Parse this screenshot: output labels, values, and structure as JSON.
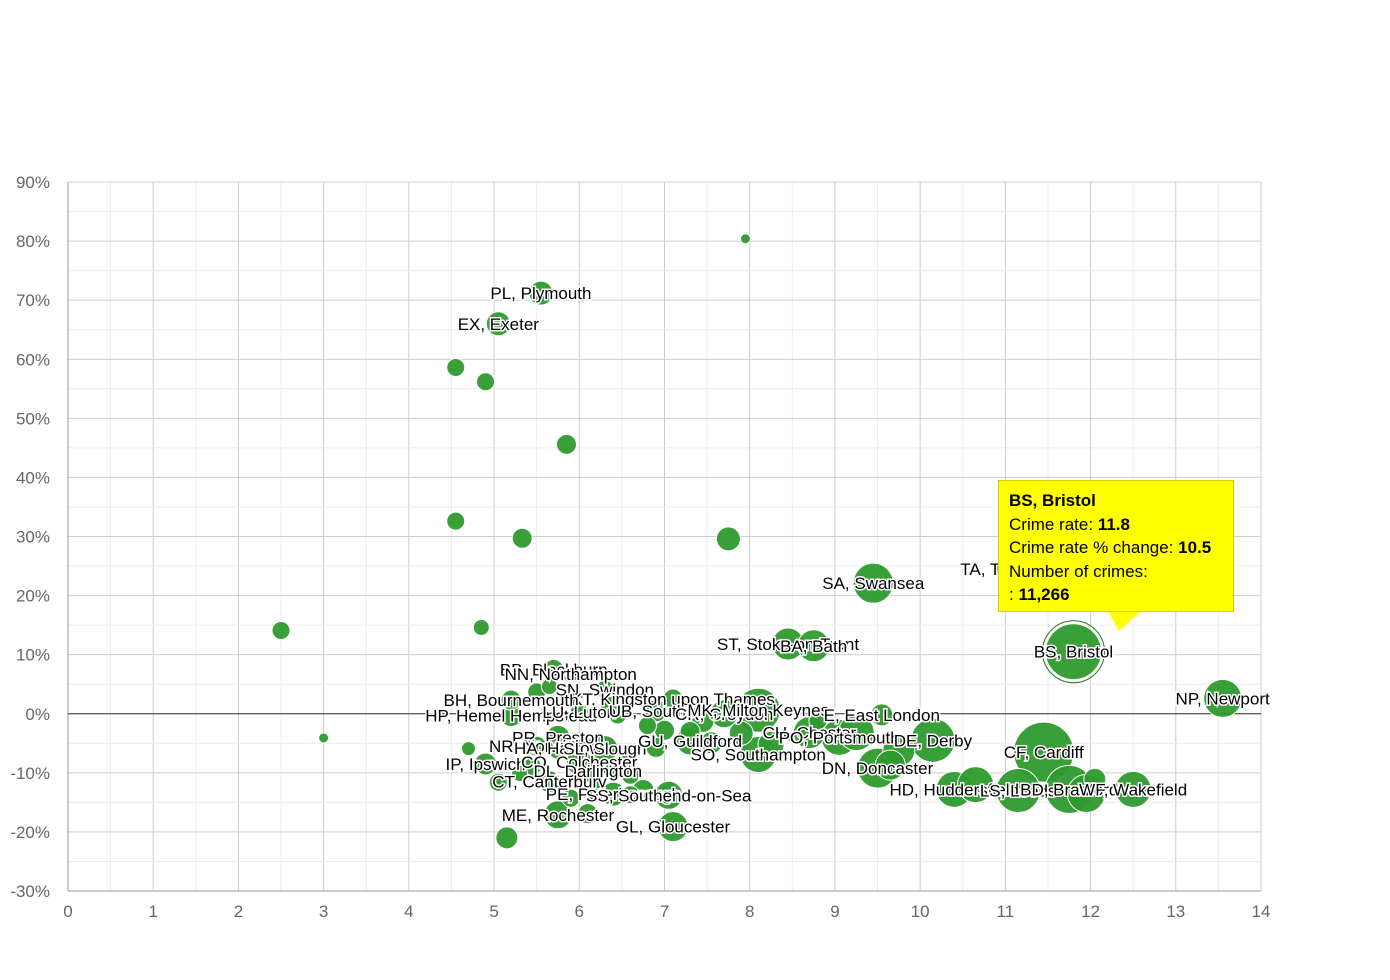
{
  "chart_data": {
    "type": "scatter",
    "title": "",
    "xlabel": "",
    "ylabel": "",
    "xlim": [
      0,
      14
    ],
    "ylim": [
      -30,
      90
    ],
    "x_ticks": [
      "0",
      "1",
      "2",
      "3",
      "4",
      "5",
      "6",
      "7",
      "8",
      "9",
      "10",
      "11",
      "12",
      "13",
      "14"
    ],
    "y_ticks": [
      "90%",
      "80%",
      "70%",
      "60%",
      "50%",
      "40%",
      "30%",
      "20%",
      "10%",
      "0%",
      "-10%",
      "-20%",
      "-30%"
    ],
    "grid": true,
    "bubble_color": "#2e9a2e",
    "points": [
      {
        "label": "PL, Plymouth",
        "x": 5.55,
        "y": 71.2,
        "size": 12
      },
      {
        "label": "EX, Exeter",
        "x": 5.05,
        "y": 66.0,
        "size": 12
      },
      {
        "label": "",
        "x": 7.95,
        "y": 80.4,
        "size": 5
      },
      {
        "label": "",
        "x": 4.55,
        "y": 58.6,
        "size": 9
      },
      {
        "label": "",
        "x": 4.9,
        "y": 56.2,
        "size": 9
      },
      {
        "label": "",
        "x": 5.85,
        "y": 45.6,
        "size": 10
      },
      {
        "label": "",
        "x": 4.55,
        "y": 32.6,
        "size": 9
      },
      {
        "label": "",
        "x": 5.33,
        "y": 29.7,
        "size": 10
      },
      {
        "label": "",
        "x": 7.75,
        "y": 29.6,
        "size": 12
      },
      {
        "label": "",
        "x": 2.5,
        "y": 14.1,
        "size": 9
      },
      {
        "label": "",
        "x": 4.85,
        "y": 14.6,
        "size": 8
      },
      {
        "label": "SA, Swansea",
        "x": 9.45,
        "y": 22.1,
        "size": 20
      },
      {
        "label": "TA, Taunton",
        "x": 11.0,
        "y": 24.5,
        "size": 10
      },
      {
        "label": "ST, Stoke-on-Trent",
        "x": 8.45,
        "y": 11.8,
        "size": 16
      },
      {
        "label": "BA, Bath",
        "x": 8.75,
        "y": 11.5,
        "size": 16
      },
      {
        "label": "BS, Bristol",
        "x": 11.8,
        "y": 10.5,
        "size": 28
      },
      {
        "label": "NP, Newport",
        "x": 13.55,
        "y": 2.6,
        "size": 19
      },
      {
        "label": "BB, Blackburn",
        "x": 5.7,
        "y": 7.5,
        "size": 10
      },
      {
        "label": "SN, Swindon",
        "x": 6.3,
        "y": 4.1,
        "size": 9
      },
      {
        "label": "KT, Kingston upon Thames",
        "x": 7.1,
        "y": 2.5,
        "size": 10
      },
      {
        "label": "BH, Bournemouth",
        "x": 5.2,
        "y": 2.3,
        "size": 10
      },
      {
        "label": "NN, Northampton",
        "x": 5.9,
        "y": 6.7,
        "size": 8
      },
      {
        "label": "HP, Hemel Hempstead",
        "x": 5.2,
        "y": -0.3,
        "size": 11
      },
      {
        "label": "LU, Luton",
        "x": 6.0,
        "y": 0.3,
        "size": 9
      },
      {
        "label": "UB, Southall",
        "x": 6.9,
        "y": 0.5,
        "size": 11
      },
      {
        "label": "CR, Croydon",
        "x": 7.7,
        "y": 0.0,
        "size": 14
      },
      {
        "label": "MK, Milton Keynes",
        "x": 8.1,
        "y": 0.6,
        "size": 22
      },
      {
        "label": "E, East London",
        "x": 9.55,
        "y": -0.2,
        "size": 11
      },
      {
        "label": "CH, Chester",
        "x": 8.7,
        "y": -3.2,
        "size": 16
      },
      {
        "label": "PO, Portsmouth",
        "x": 9.05,
        "y": -4.0,
        "size": 18
      },
      {
        "label": "DE, Derby",
        "x": 10.15,
        "y": -4.5,
        "size": 22
      },
      {
        "label": "CF, Cardiff",
        "x": 11.45,
        "y": -6.5,
        "size": 30
      },
      {
        "label": "PR, Preston",
        "x": 5.75,
        "y": -4.0,
        "size": 12
      },
      {
        "label": "NR, Norwich",
        "x": 5.5,
        "y": -5.5,
        "size": 10
      },
      {
        "label": "HA, Harrow",
        "x": 5.75,
        "y": -5.8,
        "size": 11
      },
      {
        "label": "SL, Slough",
        "x": 6.3,
        "y": -5.9,
        "size": 13
      },
      {
        "label": "GU, Guildford",
        "x": 7.3,
        "y": -4.6,
        "size": 14
      },
      {
        "label": "SO, Southampton",
        "x": 8.1,
        "y": -6.9,
        "size": 18
      },
      {
        "label": "IP, Ipswich",
        "x": 4.9,
        "y": -8.5,
        "size": 11
      },
      {
        "label": "CO, Colchester",
        "x": 6.0,
        "y": -8.2,
        "size": 13
      },
      {
        "label": "DL, Darlington",
        "x": 6.1,
        "y": -9.7,
        "size": 11
      },
      {
        "label": "DN, Doncaster",
        "x": 9.5,
        "y": -9.2,
        "size": 20
      },
      {
        "label": "HD, Huddersfield",
        "x": 10.4,
        "y": -12.8,
        "size": 18
      },
      {
        "label": "LS, Leeds",
        "x": 11.15,
        "y": -13.0,
        "size": 22
      },
      {
        "label": "BD, Bradford",
        "x": 11.75,
        "y": -12.8,
        "size": 24
      },
      {
        "label": "WF, Wakefield",
        "x": 12.5,
        "y": -12.8,
        "size": 18
      },
      {
        "label": "CT, Canterbury",
        "x": 5.65,
        "y": -11.5,
        "size": 11
      },
      {
        "label": "PE, Peterborough",
        "x": 6.4,
        "y": -13.6,
        "size": 12
      },
      {
        "label": "SS, Southend-on-Sea",
        "x": 7.05,
        "y": -13.8,
        "size": 14
      },
      {
        "label": "ME, Rochester",
        "x": 5.75,
        "y": -17.1,
        "size": 14
      },
      {
        "label": "GL, Gloucester",
        "x": 7.1,
        "y": -19.1,
        "size": 15
      },
      {
        "label": "",
        "x": 5.15,
        "y": -21.0,
        "size": 11
      },
      {
        "label": "",
        "x": 3.0,
        "y": -4.1,
        "size": 5
      },
      {
        "label": "",
        "x": 4.7,
        "y": -5.9,
        "size": 7
      },
      {
        "label": "",
        "x": 6.1,
        "y": -16.9,
        "size": 10
      },
      {
        "label": "",
        "x": 5.3,
        "y": -10.1,
        "size": 8
      },
      {
        "label": "",
        "x": 6.55,
        "y": -8.5,
        "size": 9
      },
      {
        "label": "",
        "x": 7.0,
        "y": -2.8,
        "size": 10
      },
      {
        "label": "",
        "x": 7.3,
        "y": -3.0,
        "size": 10
      },
      {
        "label": "",
        "x": 7.55,
        "y": -4.9,
        "size": 11
      },
      {
        "label": "",
        "x": 7.45,
        "y": -1.3,
        "size": 11
      },
      {
        "label": "",
        "x": 6.45,
        "y": -0.2,
        "size": 9
      },
      {
        "label": "",
        "x": 6.8,
        "y": -2.0,
        "size": 9
      },
      {
        "label": "",
        "x": 7.9,
        "y": -3.3,
        "size": 12
      },
      {
        "label": "",
        "x": 8.25,
        "y": -5.2,
        "size": 13
      },
      {
        "label": "",
        "x": 9.25,
        "y": -3.2,
        "size": 18
      },
      {
        "label": "",
        "x": 9.75,
        "y": -6.2,
        "size": 16
      },
      {
        "label": "",
        "x": 8.8,
        "y": -1.2,
        "size": 9
      },
      {
        "label": "",
        "x": 9.65,
        "y": -8.7,
        "size": 15
      },
      {
        "label": "",
        "x": 10.65,
        "y": -12.0,
        "size": 18
      },
      {
        "label": "",
        "x": 11.95,
        "y": -13.5,
        "size": 19
      },
      {
        "label": "",
        "x": 12.05,
        "y": -11.1,
        "size": 11
      },
      {
        "label": "",
        "x": 6.35,
        "y": -9.1,
        "size": 8
      },
      {
        "label": "",
        "x": 6.75,
        "y": -13.0,
        "size": 11
      },
      {
        "label": "",
        "x": 6.6,
        "y": -10.4,
        "size": 9
      },
      {
        "label": "",
        "x": 6.2,
        "y": -12.7,
        "size": 9
      },
      {
        "label": "",
        "x": 6.6,
        "y": -13.7,
        "size": 9
      },
      {
        "label": "",
        "x": 5.45,
        "y": -8.9,
        "size": 9
      },
      {
        "label": "",
        "x": 5.9,
        "y": -14.3,
        "size": 9
      },
      {
        "label": "",
        "x": 5.05,
        "y": -11.6,
        "size": 9
      },
      {
        "label": "",
        "x": 6.35,
        "y": 1.6,
        "size": 9
      },
      {
        "label": "",
        "x": 5.5,
        "y": 3.7,
        "size": 9
      },
      {
        "label": "",
        "x": 5.65,
        "y": 4.6,
        "size": 8
      },
      {
        "label": "",
        "x": 6.2,
        "y": -5.2,
        "size": 9
      },
      {
        "label": "",
        "x": 6.9,
        "y": -5.7,
        "size": 10
      }
    ],
    "tooltip": {
      "title": "BS, Bristol",
      "rate_label": "Crime rate:",
      "rate_value": "11.8",
      "change_label": "Crime rate % change:",
      "change_value": "10.5",
      "count_label": "Number of crimes:",
      "count_prefix": ":",
      "count_value": "11,266"
    }
  }
}
